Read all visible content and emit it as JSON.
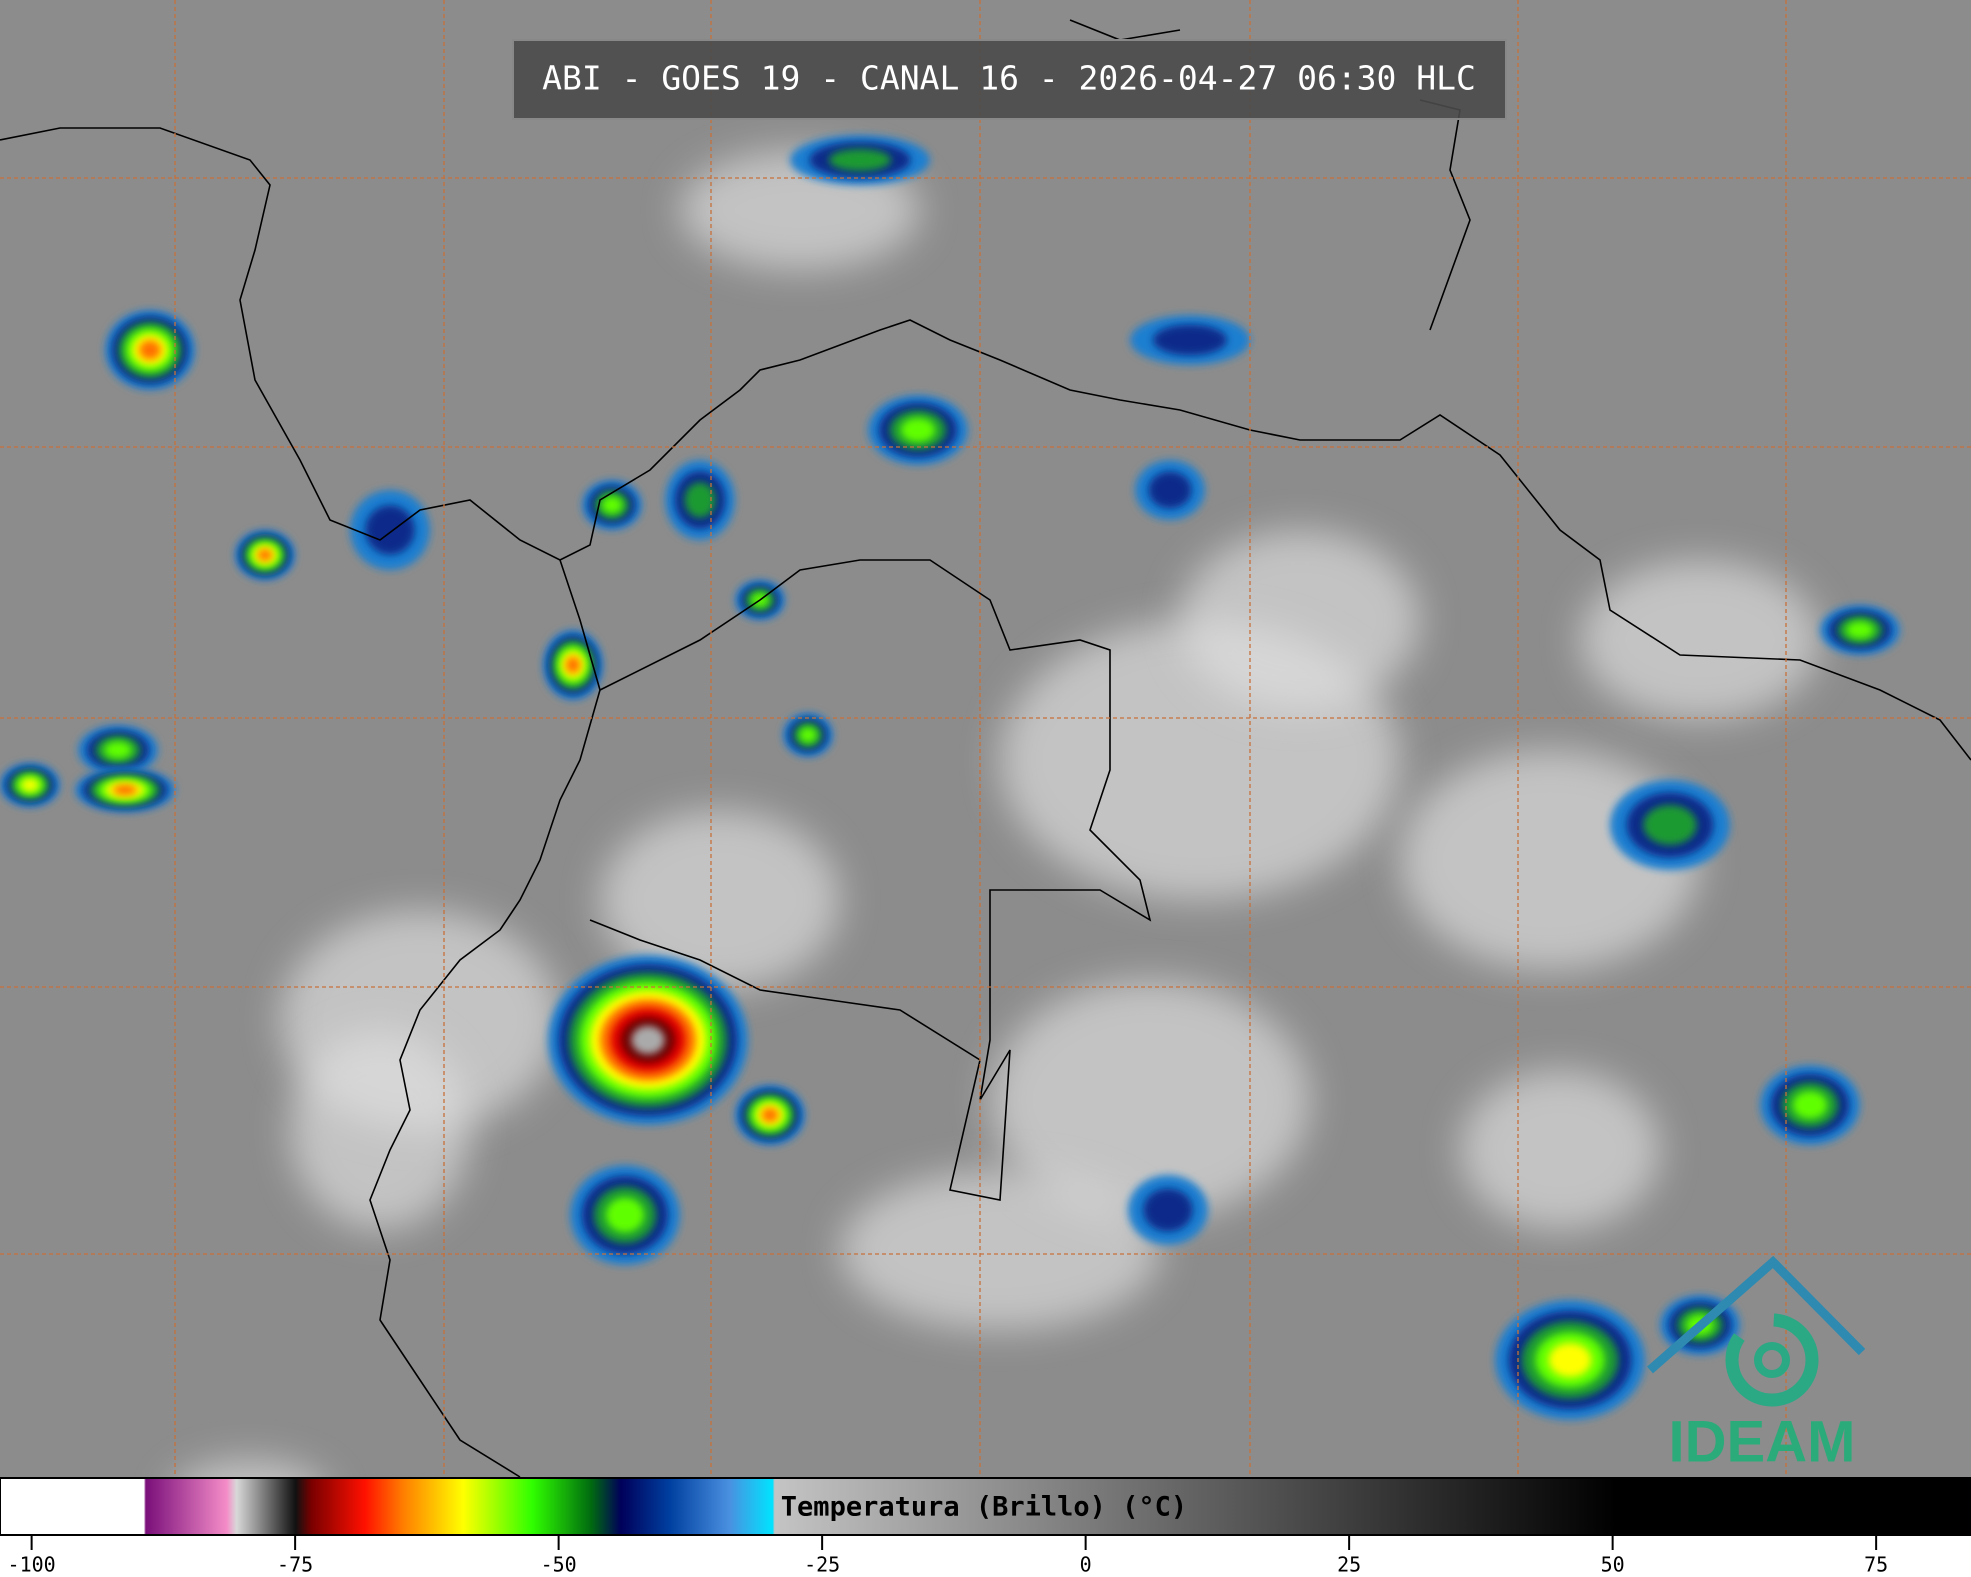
{
  "header": {
    "title": "ABI - GOES 19 - CANAL 16 - 2026-04-27 06:30 HLC"
  },
  "colorbar": {
    "label": "Temperatura (Brillo) (°C)",
    "range": [
      -103,
      84
    ],
    "ticks": [
      -100,
      -75,
      -50,
      -25,
      0,
      25,
      50,
      75
    ]
  },
  "logo": {
    "text": "IDEAM"
  }
}
